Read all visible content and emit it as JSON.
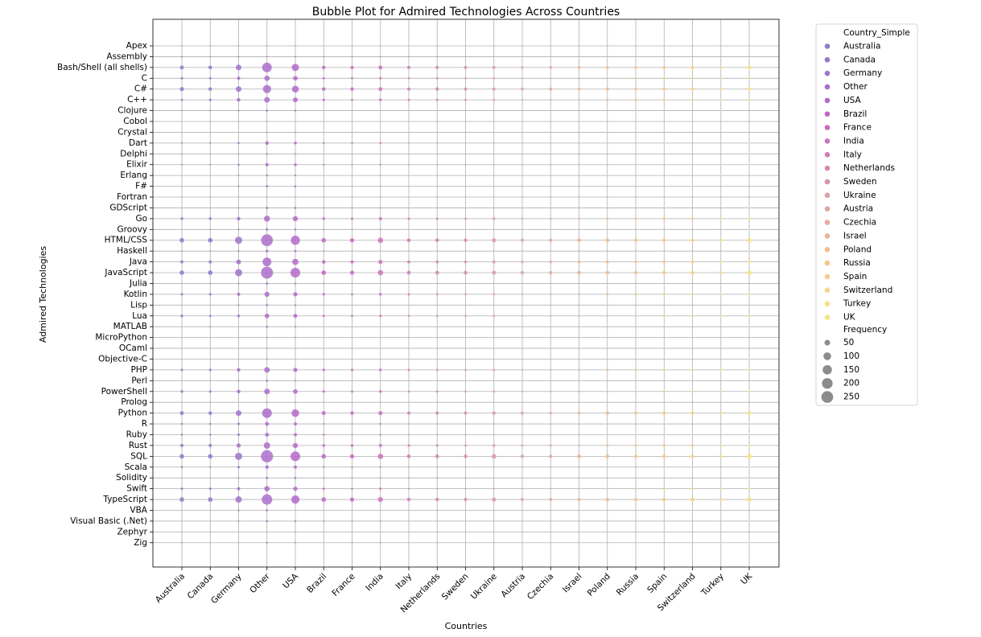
{
  "chart_data": {
    "type": "scatter",
    "title": "Bubble Plot for Admired Technologies Across Countries",
    "xlabel": "Countries",
    "ylabel": "Admired Technologies",
    "grid": true,
    "countries": [
      "Australia",
      "Canada",
      "Germany",
      "Other",
      "USA",
      "Brazil",
      "France",
      "India",
      "Italy",
      "Netherlands",
      "Sweden",
      "Ukraine",
      "Austria",
      "Czechia",
      "Israel",
      "Poland",
      "Russia",
      "Spain",
      "Switzerland",
      "Turkey",
      "UK"
    ],
    "technologies": [
      "Apex",
      "Assembly",
      "Bash/Shell (all shells)",
      "C",
      "C#",
      "C++",
      "Clojure",
      "Cobol",
      "Crystal",
      "Dart",
      "Delphi",
      "Elixir",
      "Erlang",
      "F#",
      "Fortran",
      "GDScript",
      "Go",
      "Groovy",
      "HTML/CSS",
      "Haskell",
      "Java",
      "JavaScript",
      "Julia",
      "Kotlin",
      "Lisp",
      "Lua",
      "MATLAB",
      "MicroPython",
      "OCaml",
      "Objective-C",
      "PHP",
      "Perl",
      "PowerShell",
      "Prolog",
      "Python",
      "R",
      "Ruby",
      "Rust",
      "SQL",
      "Scala",
      "Solidity",
      "Swift",
      "TypeScript",
      "VBA",
      "Visual Basic (.Net)",
      "Zephyr",
      "Zig"
    ],
    "country_colors": [
      "#8a80c7",
      "#9479c9",
      "#a173cb",
      "#ad6ecb",
      "#b66acb",
      "#c068c8",
      "#c96ac3",
      "#cf72bd",
      "#d27db8",
      "#d488b2",
      "#d793ad",
      "#db9ea9",
      "#dea8a4",
      "#e3ae9e",
      "#e8b598",
      "#f0bf93",
      "#f4c78f",
      "#f6cf8c",
      "#f8d78a",
      "#f9df88",
      "#f5e68a"
    ],
    "legend": {
      "hue_title": "Country_Simple",
      "size_title": "Frequency",
      "size_levels": [
        50,
        100,
        150,
        200,
        250
      ]
    },
    "points": [
      {
        "tech": "Apex",
        "values": [
          3,
          3,
          3,
          3,
          3,
          0,
          0,
          0,
          0,
          0,
          0,
          0,
          0,
          0,
          0,
          0,
          0,
          0,
          0,
          0,
          0
        ]
      },
      {
        "tech": "Assembly",
        "values": [
          6,
          4,
          5,
          5,
          6,
          4,
          4,
          4,
          3,
          3,
          3,
          3,
          0,
          0,
          0,
          0,
          0,
          0,
          0,
          0,
          0
        ]
      },
      {
        "tech": "Bash/Shell (all shells)",
        "values": [
          30,
          28,
          60,
          175,
          100,
          25,
          20,
          30,
          20,
          20,
          20,
          20,
          15,
          15,
          15,
          18,
          18,
          22,
          25,
          15,
          30
        ]
      },
      {
        "tech": "C",
        "values": [
          12,
          10,
          20,
          55,
          40,
          10,
          10,
          12,
          8,
          10,
          8,
          10,
          6,
          6,
          8,
          8,
          8,
          10,
          8,
          6,
          10
        ]
      },
      {
        "tech": "C#",
        "values": [
          35,
          25,
          60,
          130,
          90,
          25,
          25,
          30,
          20,
          25,
          20,
          20,
          20,
          20,
          15,
          25,
          18,
          25,
          25,
          15,
          30
        ]
      },
      {
        "tech": "C++",
        "values": [
          10,
          12,
          25,
          60,
          45,
          12,
          10,
          15,
          10,
          12,
          10,
          10,
          8,
          8,
          6,
          10,
          10,
          12,
          8,
          6,
          10
        ]
      },
      {
        "tech": "Clojure",
        "values": [
          3,
          4,
          5,
          8,
          6,
          0,
          0,
          0,
          0,
          0,
          3,
          3,
          0,
          3,
          0,
          0,
          3,
          0,
          0,
          2,
          0
        ]
      },
      {
        "tech": "Cobol",
        "values": [
          0,
          0,
          0,
          3,
          0,
          0,
          0,
          0,
          0,
          0,
          0,
          0,
          0,
          0,
          0,
          0,
          0,
          0,
          0,
          0,
          0
        ]
      },
      {
        "tech": "Crystal",
        "values": [
          0,
          0,
          0,
          3,
          3,
          0,
          0,
          0,
          0,
          0,
          0,
          0,
          0,
          0,
          0,
          3,
          0,
          0,
          0,
          0,
          0
        ]
      },
      {
        "tech": "Dart",
        "values": [
          5,
          5,
          8,
          25,
          15,
          6,
          6,
          8,
          4,
          4,
          0,
          4,
          0,
          0,
          0,
          4,
          0,
          4,
          0,
          0,
          4
        ]
      },
      {
        "tech": "Delphi",
        "values": [
          3,
          0,
          3,
          6,
          4,
          0,
          0,
          0,
          0,
          0,
          0,
          0,
          0,
          0,
          0,
          0,
          0,
          0,
          0,
          0,
          3
        ]
      },
      {
        "tech": "Elixir",
        "values": [
          5,
          5,
          8,
          20,
          15,
          6,
          5,
          6,
          4,
          4,
          4,
          4,
          4,
          4,
          0,
          0,
          0,
          0,
          0,
          3,
          4
        ]
      },
      {
        "tech": "Erlang",
        "values": [
          0,
          0,
          4,
          8,
          6,
          0,
          0,
          3,
          0,
          0,
          0,
          3,
          0,
          0,
          0,
          3,
          0,
          0,
          0,
          3,
          0
        ]
      },
      {
        "tech": "F#",
        "values": [
          0,
          0,
          5,
          10,
          8,
          3,
          0,
          3,
          0,
          0,
          0,
          0,
          0,
          0,
          0,
          0,
          0,
          0,
          3,
          0,
          0
        ]
      },
      {
        "tech": "Fortran",
        "values": [
          0,
          3,
          0,
          4,
          3,
          0,
          0,
          3,
          0,
          0,
          0,
          0,
          0,
          0,
          0,
          0,
          0,
          0,
          0,
          0,
          0
        ]
      },
      {
        "tech": "GDScript",
        "values": [
          0,
          0,
          4,
          10,
          8,
          3,
          3,
          4,
          0,
          0,
          0,
          3,
          0,
          0,
          0,
          0,
          0,
          3,
          0,
          0,
          3
        ]
      },
      {
        "tech": "Go",
        "values": [
          15,
          15,
          25,
          70,
          50,
          15,
          12,
          20,
          12,
          12,
          10,
          15,
          10,
          10,
          10,
          12,
          12,
          15,
          15,
          10,
          15
        ]
      },
      {
        "tech": "Groovy",
        "values": [
          0,
          4,
          6,
          12,
          8,
          4,
          3,
          4,
          0,
          0,
          0,
          3,
          0,
          3,
          0,
          0,
          0,
          0,
          0,
          0,
          3
        ]
      },
      {
        "tech": "HTML/CSS",
        "values": [
          40,
          40,
          100,
          265,
          160,
          40,
          35,
          55,
          28,
          28,
          28,
          35,
          25,
          25,
          28,
          30,
          25,
          30,
          30,
          20,
          40
        ]
      },
      {
        "tech": "Haskell",
        "values": [
          3,
          4,
          6,
          14,
          10,
          4,
          0,
          0,
          0,
          0,
          0,
          0,
          0,
          0,
          0,
          0,
          0,
          0,
          0,
          0,
          3
        ]
      },
      {
        "tech": "Java",
        "values": [
          20,
          20,
          45,
          150,
          75,
          25,
          20,
          35,
          18,
          18,
          15,
          20,
          15,
          15,
          15,
          20,
          15,
          20,
          20,
          12,
          20
        ]
      },
      {
        "tech": "JavaScript",
        "values": [
          40,
          40,
          100,
          275,
          180,
          40,
          35,
          55,
          28,
          30,
          28,
          35,
          25,
          25,
          28,
          30,
          25,
          30,
          30,
          20,
          45
        ]
      },
      {
        "tech": "Julia",
        "values": [
          0,
          3,
          5,
          10,
          6,
          3,
          0,
          0,
          0,
          0,
          0,
          0,
          0,
          0,
          0,
          0,
          0,
          3,
          0,
          0,
          0
        ]
      },
      {
        "tech": "Kotlin",
        "values": [
          12,
          12,
          20,
          50,
          35,
          12,
          10,
          15,
          10,
          10,
          8,
          10,
          8,
          8,
          8,
          10,
          10,
          10,
          10,
          6,
          10
        ]
      },
      {
        "tech": "Lisp",
        "values": [
          0,
          0,
          4,
          8,
          6,
          0,
          0,
          0,
          0,
          0,
          0,
          0,
          0,
          0,
          0,
          3,
          0,
          0,
          0,
          0,
          0
        ]
      },
      {
        "tech": "Lua",
        "values": [
          15,
          10,
          15,
          40,
          30,
          10,
          10,
          12,
          8,
          8,
          8,
          10,
          6,
          6,
          6,
          8,
          8,
          10,
          8,
          6,
          8
        ]
      },
      {
        "tech": "MATLAB",
        "values": [
          0,
          4,
          0,
          8,
          5,
          0,
          0,
          0,
          0,
          0,
          3,
          3,
          3,
          0,
          0,
          0,
          0,
          0,
          0,
          0,
          3
        ]
      },
      {
        "tech": "MicroPython",
        "values": [
          0,
          0,
          0,
          4,
          4,
          0,
          0,
          0,
          3,
          0,
          0,
          3,
          0,
          0,
          0,
          3,
          0,
          0,
          0,
          0,
          0
        ]
      },
      {
        "tech": "OCaml",
        "values": [
          0,
          0,
          0,
          3,
          0,
          0,
          0,
          0,
          0,
          0,
          0,
          0,
          0,
          0,
          0,
          0,
          0,
          0,
          0,
          0,
          0
        ]
      },
      {
        "tech": "Objective-C",
        "values": [
          0,
          0,
          0,
          4,
          0,
          0,
          0,
          0,
          0,
          0,
          0,
          3,
          0,
          0,
          0,
          0,
          0,
          0,
          0,
          0,
          3
        ]
      },
      {
        "tech": "PHP",
        "values": [
          12,
          12,
          25,
          60,
          35,
          12,
          12,
          15,
          10,
          10,
          8,
          12,
          8,
          8,
          8,
          10,
          10,
          10,
          10,
          8,
          12
        ]
      },
      {
        "tech": "Perl",
        "values": [
          0,
          0,
          4,
          8,
          5,
          3,
          0,
          0,
          0,
          0,
          0,
          0,
          0,
          3,
          0,
          0,
          0,
          0,
          0,
          0,
          0
        ]
      },
      {
        "tech": "PowerShell",
        "values": [
          15,
          12,
          25,
          60,
          40,
          12,
          10,
          15,
          8,
          10,
          8,
          10,
          8,
          8,
          8,
          10,
          8,
          10,
          10,
          6,
          10
        ]
      },
      {
        "tech": "Prolog",
        "values": [
          0,
          0,
          0,
          3,
          3,
          0,
          0,
          0,
          0,
          0,
          0,
          0,
          0,
          0,
          0,
          0,
          0,
          0,
          0,
          0,
          0
        ]
      },
      {
        "tech": "Python",
        "values": [
          30,
          25,
          60,
          180,
          110,
          30,
          25,
          35,
          20,
          20,
          20,
          25,
          20,
          15,
          15,
          25,
          20,
          25,
          25,
          15,
          35
        ]
      },
      {
        "tech": "R",
        "values": [
          8,
          8,
          12,
          30,
          20,
          6,
          6,
          8,
          4,
          4,
          4,
          6,
          0,
          0,
          0,
          4,
          0,
          4,
          0,
          0,
          4
        ]
      },
      {
        "tech": "Ruby",
        "values": [
          8,
          8,
          12,
          30,
          20,
          8,
          6,
          6,
          4,
          4,
          4,
          4,
          0,
          4,
          0,
          4,
          4,
          4,
          4,
          0,
          4
        ]
      },
      {
        "tech": "Rust",
        "values": [
          20,
          20,
          35,
          80,
          50,
          15,
          15,
          20,
          12,
          12,
          10,
          15,
          12,
          12,
          10,
          12,
          12,
          15,
          15,
          10,
          15
        ]
      },
      {
        "tech": "SQL",
        "values": [
          40,
          40,
          100,
          280,
          180,
          40,
          35,
          55,
          28,
          30,
          28,
          45,
          25,
          25,
          28,
          30,
          25,
          30,
          30,
          20,
          50
        ]
      },
      {
        "tech": "Scala",
        "values": [
          8,
          6,
          12,
          25,
          20,
          6,
          6,
          6,
          4,
          4,
          4,
          4,
          4,
          0,
          0,
          4,
          0,
          4,
          4,
          0,
          4
        ]
      },
      {
        "tech": "Solidity",
        "values": [
          0,
          0,
          4,
          10,
          8,
          4,
          4,
          4,
          4,
          4,
          4,
          0,
          0,
          0,
          0,
          0,
          0,
          0,
          0,
          0,
          3
        ]
      },
      {
        "tech": "Swift",
        "values": [
          12,
          12,
          20,
          55,
          35,
          10,
          8,
          12,
          6,
          6,
          6,
          8,
          6,
          6,
          6,
          8,
          8,
          10,
          15,
          6,
          10
        ]
      },
      {
        "tech": "TypeScript",
        "values": [
          40,
          40,
          80,
          210,
          130,
          40,
          35,
          50,
          25,
          25,
          25,
          35,
          20,
          20,
          20,
          30,
          25,
          30,
          35,
          20,
          40
        ]
      },
      {
        "tech": "VBA",
        "values": [
          0,
          0,
          6,
          10,
          0,
          0,
          0,
          0,
          0,
          4,
          0,
          4,
          0,
          0,
          0,
          0,
          0,
          0,
          4,
          0,
          0
        ]
      },
      {
        "tech": "Visual Basic (.Net)",
        "values": [
          0,
          0,
          4,
          8,
          6,
          4,
          4,
          4,
          0,
          0,
          0,
          0,
          0,
          4,
          0,
          0,
          0,
          0,
          0,
          0,
          3
        ]
      },
      {
        "tech": "Zephyr",
        "values": [
          0,
          0,
          0,
          0,
          3,
          0,
          0,
          0,
          0,
          0,
          0,
          0,
          0,
          0,
          0,
          0,
          0,
          0,
          0,
          0,
          0
        ]
      },
      {
        "tech": "Zig",
        "values": [
          4,
          0,
          0,
          6,
          4,
          0,
          4,
          4,
          0,
          0,
          0,
          4,
          0,
          0,
          0,
          0,
          0,
          0,
          0,
          3,
          3
        ]
      }
    ]
  }
}
